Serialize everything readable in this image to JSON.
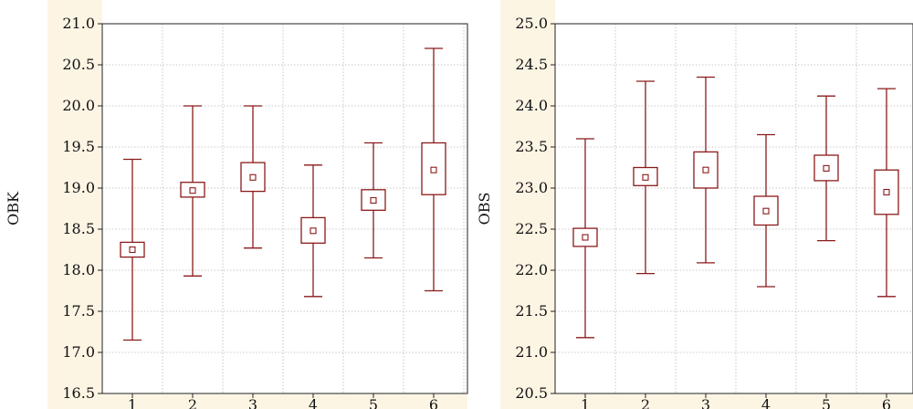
{
  "colors": {
    "series": "#8b1a1a",
    "label_band": "#fdf5e4",
    "grid": "#b8b8b8"
  },
  "chart_data": [
    {
      "type": "boxplot",
      "ylabel": "OBK",
      "categories": [
        "1",
        "2",
        "3",
        "4",
        "5",
        "6"
      ],
      "ylim": [
        16.5,
        21.0
      ],
      "yticks": [
        "16.5",
        "17.0",
        "17.5",
        "18.0",
        "18.5",
        "19.0",
        "19.5",
        "20.0",
        "20.5",
        "21.0"
      ],
      "grid": true,
      "boxes": [
        {
          "category": "1",
          "mean": 18.25,
          "box_low": 18.16,
          "box_high": 18.34,
          "whisker_low": 17.15,
          "whisker_high": 19.35
        },
        {
          "category": "2",
          "mean": 18.97,
          "box_low": 18.89,
          "box_high": 19.07,
          "whisker_low": 17.93,
          "whisker_high": 20.0
        },
        {
          "category": "3",
          "mean": 19.13,
          "box_low": 18.96,
          "box_high": 19.31,
          "whisker_low": 18.27,
          "whisker_high": 20.0
        },
        {
          "category": "4",
          "mean": 18.48,
          "box_low": 18.33,
          "box_high": 18.64,
          "whisker_low": 17.68,
          "whisker_high": 19.28
        },
        {
          "category": "5",
          "mean": 18.85,
          "box_low": 18.73,
          "box_high": 18.98,
          "whisker_low": 18.15,
          "whisker_high": 19.55
        },
        {
          "category": "6",
          "mean": 19.22,
          "box_low": 18.92,
          "box_high": 19.55,
          "whisker_low": 17.75,
          "whisker_high": 20.7
        }
      ]
    },
    {
      "type": "boxplot",
      "ylabel": "OBS",
      "categories": [
        "1",
        "2",
        "3",
        "4",
        "5",
        "6"
      ],
      "ylim": [
        20.5,
        25.0
      ],
      "yticks": [
        "20.5",
        "21.0",
        "21.5",
        "22.0",
        "22.5",
        "23.0",
        "23.5",
        "24.0",
        "24.5",
        "25.0"
      ],
      "grid": true,
      "boxes": [
        {
          "category": "1",
          "mean": 22.4,
          "box_low": 22.29,
          "box_high": 22.51,
          "whisker_low": 21.18,
          "whisker_high": 23.6
        },
        {
          "category": "2",
          "mean": 23.13,
          "box_low": 23.03,
          "box_high": 23.25,
          "whisker_low": 21.96,
          "whisker_high": 24.3
        },
        {
          "category": "3",
          "mean": 23.22,
          "box_low": 23.0,
          "box_high": 23.44,
          "whisker_low": 22.09,
          "whisker_high": 24.35
        },
        {
          "category": "4",
          "mean": 22.72,
          "box_low": 22.55,
          "box_high": 22.9,
          "whisker_low": 21.8,
          "whisker_high": 23.65
        },
        {
          "category": "5",
          "mean": 23.24,
          "box_low": 23.09,
          "box_high": 23.4,
          "whisker_low": 22.36,
          "whisker_high": 24.12
        },
        {
          "category": "6",
          "mean": 22.95,
          "box_low": 22.68,
          "box_high": 23.22,
          "whisker_low": 21.68,
          "whisker_high": 24.21
        }
      ]
    }
  ]
}
